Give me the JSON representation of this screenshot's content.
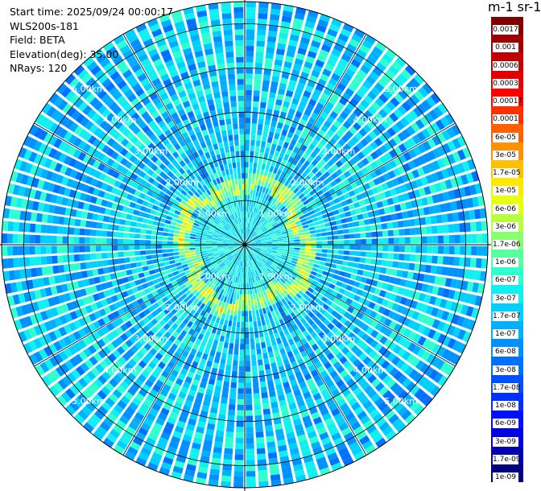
{
  "info": {
    "start_time": "Start time: 2025/09/24 00:00:17",
    "instrument": "WLS200s-181",
    "field": "Field: BETA",
    "elevation": "Elevation(deg): 35.00",
    "nrays": "NRays: 120"
  },
  "colorbar": {
    "unit_title": "m-1 sr-1",
    "labels": [
      "0.0017",
      "0.001",
      "0.0006",
      "0.0003",
      "0.00017",
      "0.0001",
      "6e-05",
      "3e-05",
      "1.7e-05",
      "1e-05",
      "6e-06",
      "3e-06",
      "1.7e-06",
      "1e-06",
      "6e-07",
      "3e-07",
      "1.7e-07",
      "1e-07",
      "6e-08",
      "3e-08",
      "1.7e-08",
      "1e-08",
      "6e-09",
      "3e-09",
      "1.7e-09",
      "1e-09"
    ],
    "colors": [
      "#7f0000",
      "#a00000",
      "#c00000",
      "#e00000",
      "#ff0000",
      "#ff3000",
      "#ff6000",
      "#ff9000",
      "#ffc000",
      "#ffe800",
      "#e8ff10",
      "#b8ff40",
      "#88ff70",
      "#58ffa0",
      "#30ffd0",
      "#10f0f0",
      "#00d0ff",
      "#00b0ff",
      "#0090ff",
      "#0070ff",
      "#0050ff",
      "#0030ff",
      "#0010ff",
      "#0000e0",
      "#0000b0",
      "#000080"
    ]
  },
  "chart_data": {
    "type": "heatmap",
    "projection": "polar (PPI)",
    "field": "BETA",
    "nrays": 120,
    "elevation_deg": 35.0,
    "range_rings_km": [
      1.0,
      2.0,
      3.0,
      4.0,
      5.0
    ],
    "ring_labels": [
      "1.00km",
      "2.00km",
      "3.00km",
      "4.00km",
      "5.00km"
    ],
    "scale": "log",
    "colorbar_range": [
      1e-09,
      0.0017
    ],
    "background_level": 1.7e-07,
    "enhanced_ring_km": [
      1.15,
      1.6
    ],
    "enhanced_level": 1e-05
  }
}
